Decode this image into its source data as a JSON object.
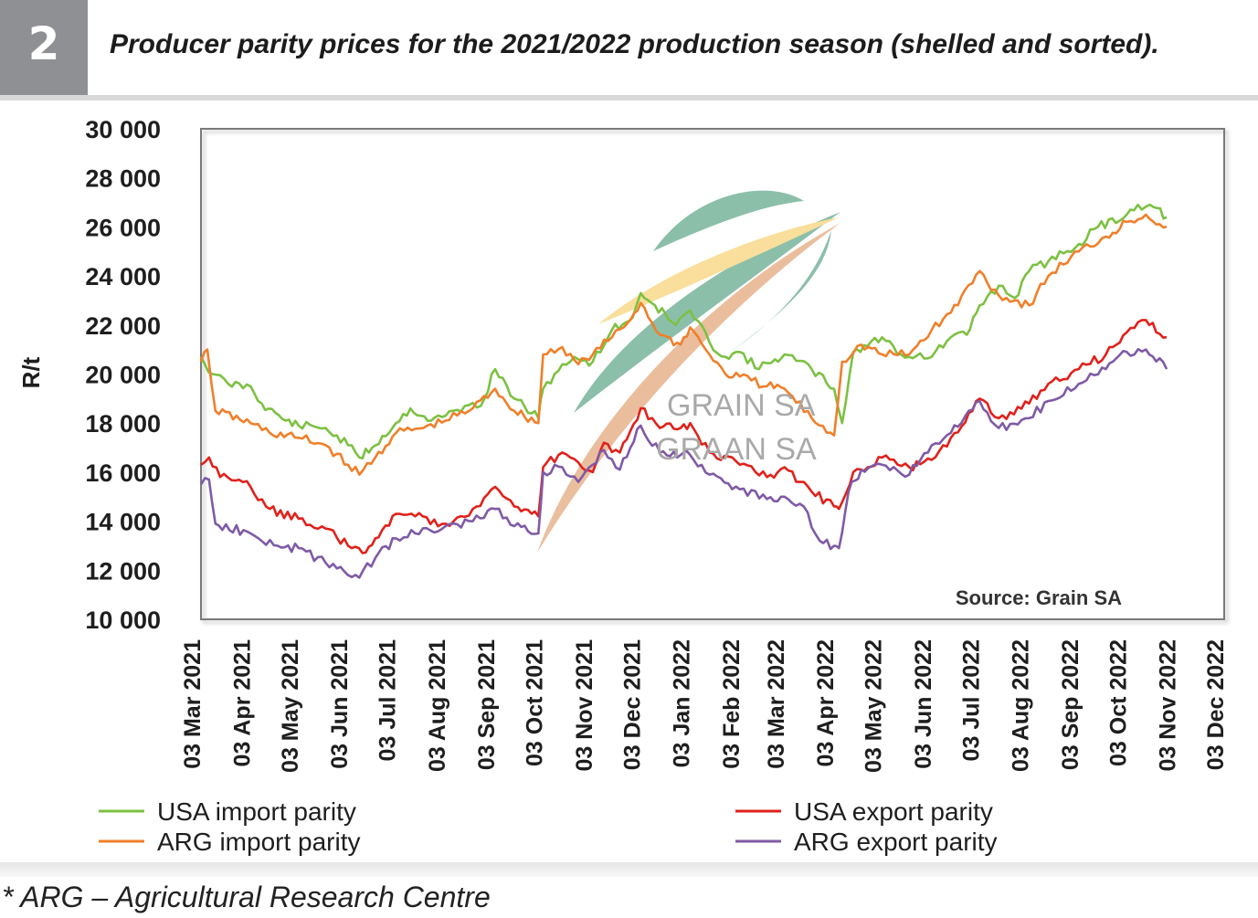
{
  "figure": {
    "number": "2",
    "title": "Producer parity prices for the 2021/2022 production season (shelled and sorted).",
    "footnote": "* ARG – Agricultural Research Centre"
  },
  "chart_data": {
    "type": "line",
    "title": "Producer parity prices for the 2021/2022 production season (shelled and sorted).",
    "ylabel": "R/t",
    "xlabel": "",
    "ylim": [
      10000,
      30000
    ],
    "yticks": [
      10000,
      12000,
      14000,
      16000,
      18000,
      20000,
      22000,
      24000,
      26000,
      28000,
      30000
    ],
    "ytick_labels": [
      "10 000",
      "12 000",
      "14 000",
      "16 000",
      "18 000",
      "20 000",
      "22 000",
      "24 000",
      "26 000",
      "28 000",
      "30 000"
    ],
    "x_dates": [
      "2021-03-03",
      "2021-04-03",
      "2021-05-03",
      "2021-06-03",
      "2021-07-03",
      "2021-08-03",
      "2021-09-03",
      "2021-10-03",
      "2021-11-03",
      "2021-12-03",
      "2022-01-03",
      "2022-02-03",
      "2022-03-03",
      "2022-04-03",
      "2022-05-03",
      "2022-06-03",
      "2022-07-03",
      "2022-08-03",
      "2022-09-03",
      "2022-10-03",
      "2022-11-03",
      "2022-12-03"
    ],
    "xtick_labels": [
      "03 Mar 2021",
      "03 Apr 2021",
      "03 May 2021",
      "03 Jun 2021",
      "03 Jul 2021",
      "03 Aug 2021",
      "03 Sep 2021",
      "03 Oct 2021",
      "03 Nov 2021",
      "03 Dec 2021",
      "03 Jan 2022",
      "03 Feb 2022",
      "03 Mar 2022",
      "03 Apr 2022",
      "03 May 2022",
      "03 Jun 2022",
      "03 Jul 2022",
      "03 Aug 2022",
      "03 Sep 2022",
      "03 Oct 2022",
      "03 Nov 2022",
      "03 Dec 2022"
    ],
    "xlim": [
      "2021-03-03",
      "2022-12-03"
    ],
    "grid": false,
    "legend_position": "bottom",
    "source_note": "Source: Grain SA",
    "watermark": [
      "GRAIN SA",
      "GRAAN SA"
    ],
    "series": [
      {
        "name": "USA import parity",
        "color": "#7cc142",
        "points": [
          [
            "2021-03-03",
            20700
          ],
          [
            "2021-03-10",
            20000
          ],
          [
            "2021-03-20",
            19600
          ],
          [
            "2021-04-03",
            19500
          ],
          [
            "2021-04-10",
            18800
          ],
          [
            "2021-04-25",
            18100
          ],
          [
            "2021-05-03",
            17900
          ],
          [
            "2021-05-20",
            17800
          ],
          [
            "2021-06-03",
            17100
          ],
          [
            "2021-06-10",
            16600
          ],
          [
            "2021-06-18",
            17000
          ],
          [
            "2021-07-03",
            18000
          ],
          [
            "2021-07-12",
            18600
          ],
          [
            "2021-07-25",
            18100
          ],
          [
            "2021-08-03",
            18300
          ],
          [
            "2021-08-15",
            18700
          ],
          [
            "2021-08-25",
            18700
          ],
          [
            "2021-09-03",
            20200
          ],
          [
            "2021-09-15",
            19000
          ],
          [
            "2021-09-30",
            18200
          ],
          [
            "2021-10-03",
            19400
          ],
          [
            "2021-10-15",
            20400
          ],
          [
            "2021-10-25",
            20600
          ],
          [
            "2021-11-03",
            20500
          ],
          [
            "2021-11-15",
            21800
          ],
          [
            "2021-11-28",
            22300
          ],
          [
            "2021-12-03",
            23300
          ],
          [
            "2021-12-12",
            22800
          ],
          [
            "2021-12-25",
            22000
          ],
          [
            "2022-01-03",
            22600
          ],
          [
            "2022-01-15",
            21300
          ],
          [
            "2022-01-25",
            20700
          ],
          [
            "2022-02-03",
            20900
          ],
          [
            "2022-02-15",
            20200
          ],
          [
            "2022-02-25",
            20600
          ],
          [
            "2022-03-03",
            20800
          ],
          [
            "2022-03-20",
            20200
          ],
          [
            "2022-04-03",
            19400
          ],
          [
            "2022-04-08",
            18000
          ],
          [
            "2022-04-15",
            20900
          ],
          [
            "2022-05-03",
            21500
          ],
          [
            "2022-05-15",
            20800
          ],
          [
            "2022-06-03",
            20700
          ],
          [
            "2022-06-15",
            21500
          ],
          [
            "2022-06-25",
            21600
          ],
          [
            "2022-07-03",
            22800
          ],
          [
            "2022-07-15",
            23600
          ],
          [
            "2022-07-25",
            23100
          ],
          [
            "2022-08-03",
            24200
          ],
          [
            "2022-08-15",
            24600
          ],
          [
            "2022-09-03",
            25300
          ],
          [
            "2022-09-15",
            26000
          ],
          [
            "2022-10-03",
            26500
          ],
          [
            "2022-10-10",
            26900
          ],
          [
            "2022-10-20",
            26800
          ],
          [
            "2022-10-28",
            26400
          ]
        ]
      },
      {
        "name": "ARG import parity",
        "color": "#f07f2a",
        "points": [
          [
            "2021-03-03",
            20500
          ],
          [
            "2021-03-07",
            21000
          ],
          [
            "2021-03-12",
            18500
          ],
          [
            "2021-04-03",
            18000
          ],
          [
            "2021-04-15",
            17600
          ],
          [
            "2021-05-03",
            17400
          ],
          [
            "2021-05-20",
            17100
          ],
          [
            "2021-06-03",
            16300
          ],
          [
            "2021-06-10",
            15900
          ],
          [
            "2021-06-20",
            16600
          ],
          [
            "2021-07-03",
            17600
          ],
          [
            "2021-07-20",
            17800
          ],
          [
            "2021-08-03",
            18100
          ],
          [
            "2021-08-20",
            18600
          ],
          [
            "2021-09-03",
            19400
          ],
          [
            "2021-09-15",
            18500
          ],
          [
            "2021-09-30",
            18000
          ],
          [
            "2021-10-03",
            20800
          ],
          [
            "2021-10-15",
            21100
          ],
          [
            "2021-10-25",
            20400
          ],
          [
            "2021-11-03",
            20800
          ],
          [
            "2021-11-15",
            21500
          ],
          [
            "2021-11-25",
            22100
          ],
          [
            "2021-12-03",
            22900
          ],
          [
            "2021-12-15",
            21600
          ],
          [
            "2021-12-28",
            21200
          ],
          [
            "2022-01-03",
            21900
          ],
          [
            "2022-01-15",
            20800
          ],
          [
            "2022-01-25",
            20000
          ],
          [
            "2022-02-03",
            19900
          ],
          [
            "2022-02-20",
            19500
          ],
          [
            "2022-03-03",
            19400
          ],
          [
            "2022-03-20",
            18200
          ],
          [
            "2022-04-03",
            17500
          ],
          [
            "2022-04-08",
            20500
          ],
          [
            "2022-04-20",
            21200
          ],
          [
            "2022-05-03",
            20800
          ],
          [
            "2022-05-20",
            20800
          ],
          [
            "2022-06-03",
            21800
          ],
          [
            "2022-06-15",
            22500
          ],
          [
            "2022-07-03",
            24200
          ],
          [
            "2022-07-15",
            23200
          ],
          [
            "2022-08-03",
            22800
          ],
          [
            "2022-08-15",
            24000
          ],
          [
            "2022-09-03",
            25000
          ],
          [
            "2022-09-20",
            25600
          ],
          [
            "2022-10-03",
            26200
          ],
          [
            "2022-10-15",
            26500
          ],
          [
            "2022-10-28",
            26000
          ]
        ]
      },
      {
        "name": "USA export parity",
        "color": "#e0211b",
        "points": [
          [
            "2021-03-03",
            16300
          ],
          [
            "2021-03-08",
            16600
          ],
          [
            "2021-03-15",
            15800
          ],
          [
            "2021-04-03",
            15400
          ],
          [
            "2021-04-15",
            14500
          ],
          [
            "2021-05-03",
            14100
          ],
          [
            "2021-05-20",
            13700
          ],
          [
            "2021-06-03",
            13000
          ],
          [
            "2021-06-12",
            12700
          ],
          [
            "2021-06-20",
            13300
          ],
          [
            "2021-07-03",
            14300
          ],
          [
            "2021-07-15",
            14200
          ],
          [
            "2021-08-03",
            13900
          ],
          [
            "2021-08-20",
            14500
          ],
          [
            "2021-09-03",
            15400
          ],
          [
            "2021-09-15",
            14600
          ],
          [
            "2021-09-30",
            14200
          ],
          [
            "2021-10-03",
            16200
          ],
          [
            "2021-10-15",
            16800
          ],
          [
            "2021-10-25",
            16400
          ],
          [
            "2021-11-03",
            16000
          ],
          [
            "2021-11-10",
            17200
          ],
          [
            "2021-11-20",
            16800
          ],
          [
            "2021-12-03",
            18600
          ],
          [
            "2021-12-15",
            17800
          ],
          [
            "2021-12-28",
            17800
          ],
          [
            "2022-01-03",
            18000
          ],
          [
            "2022-01-15",
            16800
          ],
          [
            "2022-02-03",
            16300
          ],
          [
            "2022-02-20",
            15800
          ],
          [
            "2022-03-03",
            16200
          ],
          [
            "2022-03-20",
            15200
          ],
          [
            "2022-04-03",
            14600
          ],
          [
            "2022-04-06",
            14500
          ],
          [
            "2022-04-15",
            16000
          ],
          [
            "2022-05-03",
            16600
          ],
          [
            "2022-05-20",
            16200
          ],
          [
            "2022-06-03",
            16500
          ],
          [
            "2022-06-15",
            17400
          ],
          [
            "2022-07-03",
            19000
          ],
          [
            "2022-07-15",
            18200
          ],
          [
            "2022-08-03",
            18800
          ],
          [
            "2022-08-15",
            19600
          ],
          [
            "2022-09-03",
            20200
          ],
          [
            "2022-09-20",
            20800
          ],
          [
            "2022-10-03",
            21700
          ],
          [
            "2022-10-15",
            22200
          ],
          [
            "2022-10-28",
            21500
          ]
        ]
      },
      {
        "name": "ARG export parity",
        "color": "#7f5aa6",
        "points": [
          [
            "2021-03-03",
            15500
          ],
          [
            "2021-03-08",
            15700
          ],
          [
            "2021-03-12",
            13900
          ],
          [
            "2021-04-03",
            13500
          ],
          [
            "2021-04-20",
            13000
          ],
          [
            "2021-05-03",
            12900
          ],
          [
            "2021-05-20",
            12300
          ],
          [
            "2021-06-03",
            11800
          ],
          [
            "2021-06-10",
            11700
          ],
          [
            "2021-06-20",
            12500
          ],
          [
            "2021-07-03",
            13300
          ],
          [
            "2021-07-15",
            13500
          ],
          [
            "2021-08-03",
            13800
          ],
          [
            "2021-08-20",
            14000
          ],
          [
            "2021-09-03",
            14500
          ],
          [
            "2021-09-15",
            13800
          ],
          [
            "2021-09-30",
            13500
          ],
          [
            "2021-10-03",
            16000
          ],
          [
            "2021-10-15",
            16200
          ],
          [
            "2021-10-25",
            15600
          ],
          [
            "2021-11-03",
            16300
          ],
          [
            "2021-11-10",
            16900
          ],
          [
            "2021-11-20",
            16100
          ],
          [
            "2021-12-03",
            17900
          ],
          [
            "2021-12-15",
            16800
          ],
          [
            "2021-12-28",
            16700
          ],
          [
            "2022-01-03",
            16700
          ],
          [
            "2022-01-15",
            15900
          ],
          [
            "2022-02-03",
            15300
          ],
          [
            "2022-02-20",
            14900
          ],
          [
            "2022-03-03",
            15000
          ],
          [
            "2022-03-15",
            14600
          ],
          [
            "2022-03-25",
            13200
          ],
          [
            "2022-04-03",
            13000
          ],
          [
            "2022-04-06",
            12900
          ],
          [
            "2022-04-12",
            15200
          ],
          [
            "2022-04-20",
            16100
          ],
          [
            "2022-05-03",
            16300
          ],
          [
            "2022-05-20",
            15900
          ],
          [
            "2022-06-03",
            17100
          ],
          [
            "2022-06-15",
            17600
          ],
          [
            "2022-07-03",
            18900
          ],
          [
            "2022-07-15",
            17800
          ],
          [
            "2022-08-03",
            18200
          ],
          [
            "2022-08-15",
            18900
          ],
          [
            "2022-09-03",
            19600
          ],
          [
            "2022-09-20",
            20200
          ],
          [
            "2022-10-03",
            20900
          ],
          [
            "2022-10-15",
            21000
          ],
          [
            "2022-10-28",
            20200
          ]
        ]
      }
    ]
  }
}
